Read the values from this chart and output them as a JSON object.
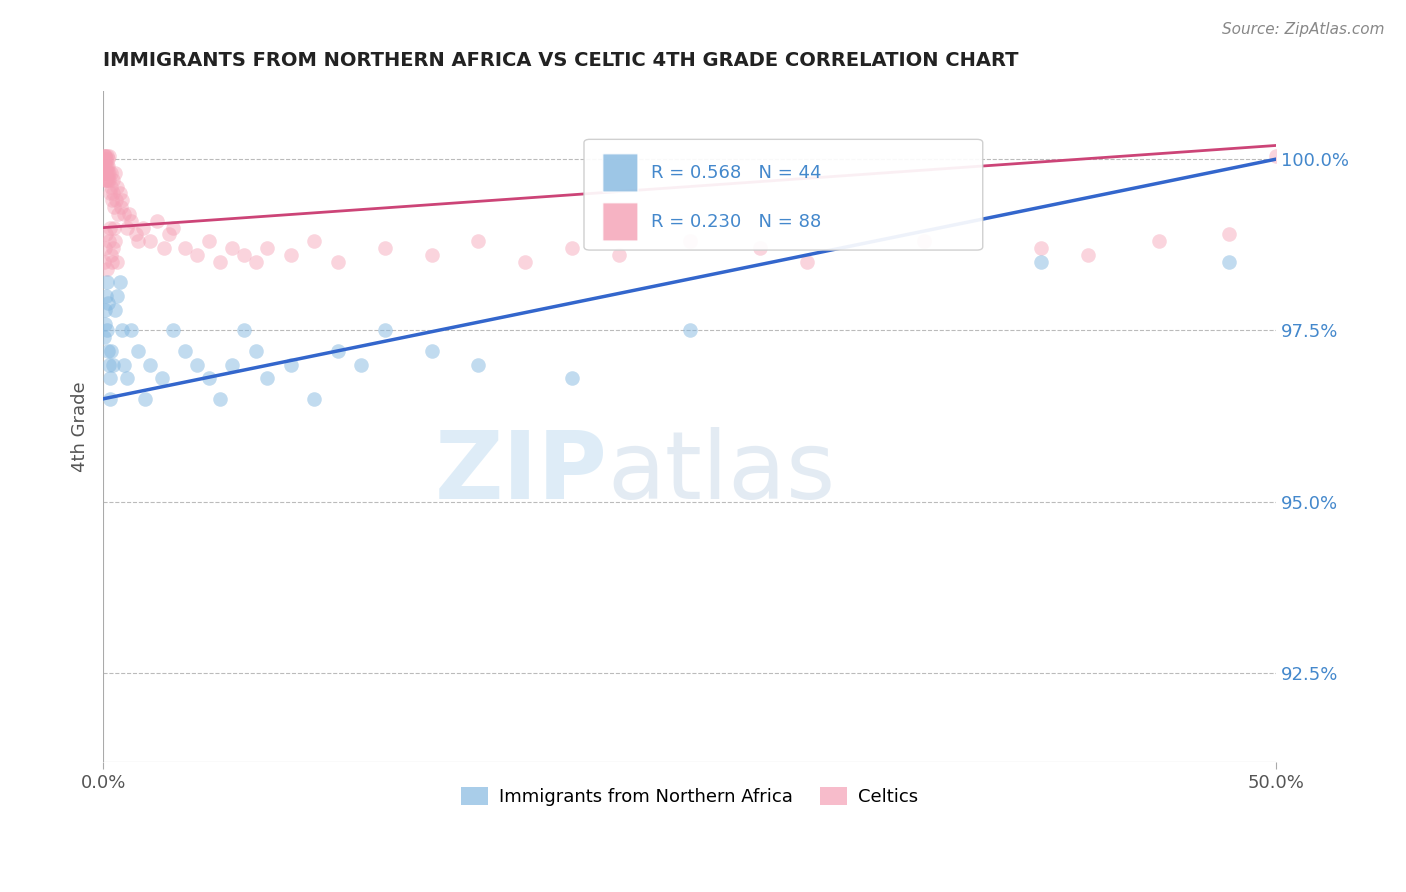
{
  "title": "IMMIGRANTS FROM NORTHERN AFRICA VS CELTIC 4TH GRADE CORRELATION CHART",
  "source_text": "Source: ZipAtlas.com",
  "ylabel": "4th Grade",
  "x_min": 0.0,
  "x_max": 50.0,
  "y_min": 91.2,
  "y_max": 101.0,
  "y_ticks": [
    92.5,
    95.0,
    97.5,
    100.0
  ],
  "y_tick_labels": [
    "92.5%",
    "95.0%",
    "97.5%",
    "100.0%"
  ],
  "legend_blue_label": "Immigrants from Northern Africa",
  "legend_pink_label": "Celtics",
  "r_blue": 0.568,
  "n_blue": 44,
  "r_pink": 0.23,
  "n_pink": 88,
  "blue_color": "#85b8e0",
  "pink_color": "#f4a0b5",
  "blue_line_color": "#3366cc",
  "pink_line_color": "#cc4477",
  "watermark_zip": "ZIP",
  "watermark_atlas": "atlas",
  "background_color": "#ffffff",
  "grid_color": "#bbbbbb",
  "blue_trend_x0": 0.0,
  "blue_trend_y0": 96.5,
  "blue_trend_x1": 50.0,
  "blue_trend_y1": 100.0,
  "pink_trend_x0": 0.0,
  "pink_trend_y0": 99.0,
  "pink_trend_x1": 50.0,
  "pink_trend_y1": 100.2,
  "blue_scatter_x": [
    0.05,
    0.08,
    0.1,
    0.12,
    0.15,
    0.18,
    0.2,
    0.22,
    0.25,
    0.28,
    0.3,
    0.35,
    0.4,
    0.5,
    0.6,
    0.7,
    0.8,
    0.9,
    1.0,
    1.2,
    1.5,
    1.8,
    2.0,
    2.5,
    3.0,
    3.5,
    4.0,
    4.5,
    5.0,
    5.5,
    6.0,
    6.5,
    7.0,
    8.0,
    9.0,
    10.0,
    11.0,
    12.0,
    14.0,
    16.0,
    20.0,
    25.0,
    40.0,
    48.0
  ],
  "blue_scatter_y": [
    97.4,
    97.6,
    97.8,
    98.0,
    97.5,
    98.2,
    97.9,
    97.2,
    97.0,
    96.8,
    96.5,
    97.2,
    97.0,
    97.8,
    98.0,
    98.2,
    97.5,
    97.0,
    96.8,
    97.5,
    97.2,
    96.5,
    97.0,
    96.8,
    97.5,
    97.2,
    97.0,
    96.8,
    96.5,
    97.0,
    97.5,
    97.2,
    96.8,
    97.0,
    96.5,
    97.2,
    97.0,
    97.5,
    97.2,
    97.0,
    96.8,
    97.5,
    98.5,
    98.5
  ],
  "pink_scatter_x": [
    0.02,
    0.03,
    0.04,
    0.05,
    0.06,
    0.07,
    0.08,
    0.09,
    0.1,
    0.11,
    0.12,
    0.13,
    0.14,
    0.15,
    0.16,
    0.17,
    0.18,
    0.19,
    0.2,
    0.21,
    0.22,
    0.23,
    0.25,
    0.27,
    0.3,
    0.32,
    0.35,
    0.38,
    0.4,
    0.42,
    0.45,
    0.5,
    0.55,
    0.6,
    0.65,
    0.7,
    0.75,
    0.8,
    0.9,
    1.0,
    1.1,
    1.2,
    1.4,
    1.5,
    1.7,
    2.0,
    2.3,
    2.6,
    2.8,
    3.0,
    3.5,
    4.0,
    4.5,
    5.0,
    5.5,
    6.0,
    6.5,
    7.0,
    8.0,
    9.0,
    10.0,
    12.0,
    14.0,
    16.0,
    18.0,
    20.0,
    22.0,
    25.0,
    28.0,
    30.0,
    35.0,
    40.0,
    42.0,
    45.0,
    48.0,
    50.0,
    0.05,
    0.08,
    0.12,
    0.18,
    0.24,
    0.28,
    0.33,
    0.36,
    0.41,
    0.46,
    0.52,
    0.58
  ],
  "pink_scatter_y": [
    100.05,
    99.8,
    100.0,
    99.9,
    99.7,
    100.05,
    99.8,
    99.9,
    100.05,
    99.7,
    99.8,
    99.9,
    100.0,
    99.8,
    99.7,
    100.05,
    99.9,
    99.8,
    100.0,
    99.7,
    99.9,
    100.05,
    99.8,
    99.7,
    99.5,
    99.8,
    99.6,
    99.4,
    99.7,
    99.5,
    99.3,
    99.8,
    99.4,
    99.6,
    99.2,
    99.5,
    99.3,
    99.4,
    99.2,
    99.0,
    99.2,
    99.1,
    98.9,
    98.8,
    99.0,
    98.8,
    99.1,
    98.7,
    98.9,
    99.0,
    98.7,
    98.6,
    98.8,
    98.5,
    98.7,
    98.6,
    98.5,
    98.7,
    98.6,
    98.8,
    98.5,
    98.7,
    98.6,
    98.8,
    98.5,
    98.7,
    98.6,
    98.8,
    98.7,
    98.5,
    98.8,
    98.7,
    98.6,
    98.8,
    98.9,
    100.05,
    98.5,
    98.7,
    98.9,
    98.4,
    98.8,
    99.0,
    98.6,
    98.5,
    98.7,
    99.0,
    98.8,
    98.5
  ]
}
